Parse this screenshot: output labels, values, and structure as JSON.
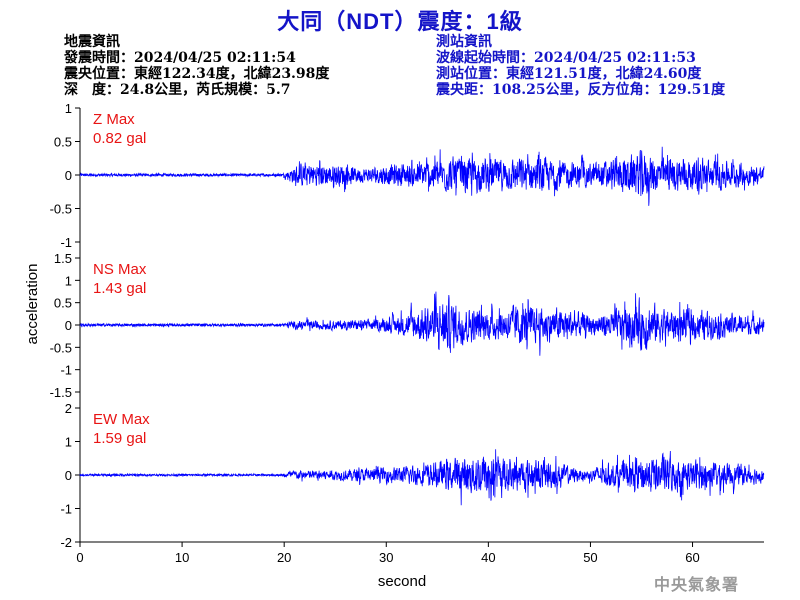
{
  "header": {
    "title": "大同（NDT）震度：1級",
    "quake_info": [
      "地震資訊",
      "發震時間：2024/04/25 02:11:54",
      "震央位置：東經122.34度，北緯23.98度",
      "深　度：24.8公里，芮氏規模：5.7"
    ],
    "station_info": [
      "測站資訊",
      "波線起始時間：2024/04/25 02:11:53",
      "測站位置：東經121.51度，北緯24.60度",
      "震央距：108.25公里，反方位角：129.51度"
    ]
  },
  "footer": {
    "agency": "中央氣象署"
  },
  "colors": {
    "trace": "#0000ff",
    "max_label": "#e81414",
    "title": "#1414c8",
    "axis": "#000000"
  },
  "chart_data": {
    "type": "line",
    "xlabel": "second",
    "ylabel": "acceleration",
    "xlim": [
      0,
      67
    ],
    "x_ticks": [
      0,
      10,
      20,
      30,
      40,
      50,
      60
    ],
    "grid": false,
    "panels": [
      {
        "name": "Z",
        "max_label": "Z Max",
        "max_value": "0.82 gal",
        "ylim": [
          -1,
          1
        ],
        "y_ticks": [
          -1,
          -0.5,
          0,
          0.5,
          1
        ],
        "y_tick_labels": [
          "-1",
          "-0.5",
          "0",
          "0.5",
          "1"
        ],
        "onset_s": 20.0,
        "peak": 0.82,
        "envelope": [
          [
            0,
            0.02
          ],
          [
            19.9,
            0.02
          ],
          [
            20.5,
            0.25
          ],
          [
            22,
            0.45
          ],
          [
            25,
            0.4
          ],
          [
            28,
            0.25
          ],
          [
            31,
            0.4
          ],
          [
            33,
            0.45
          ],
          [
            35,
            0.55
          ],
          [
            37,
            0.6
          ],
          [
            39,
            0.6
          ],
          [
            42,
            0.55
          ],
          [
            45,
            0.6
          ],
          [
            48,
            0.45
          ],
          [
            50,
            0.4
          ],
          [
            53,
            0.6
          ],
          [
            55,
            0.82
          ],
          [
            57,
            0.6
          ],
          [
            60,
            0.55
          ],
          [
            63,
            0.5
          ],
          [
            66,
            0.35
          ],
          [
            67,
            0.3
          ]
        ]
      },
      {
        "name": "NS",
        "max_label": "NS Max",
        "max_value": "1.43 gal",
        "ylim": [
          -1.5,
          1.5
        ],
        "y_ticks": [
          -1.5,
          -1,
          -0.5,
          0,
          0.5,
          1,
          1.5
        ],
        "y_tick_labels": [
          "-1.5",
          "-1",
          "-0.5",
          "0",
          "0.5",
          "1",
          "1.5"
        ],
        "onset_s": 20.0,
        "peak": 1.43,
        "envelope": [
          [
            0,
            0.03
          ],
          [
            19.9,
            0.03
          ],
          [
            20.5,
            0.2
          ],
          [
            25,
            0.25
          ],
          [
            29,
            0.3
          ],
          [
            31,
            0.45
          ],
          [
            33,
            0.8
          ],
          [
            35,
            1.2
          ],
          [
            36,
            1.43
          ],
          [
            38,
            0.9
          ],
          [
            40,
            0.8
          ],
          [
            42,
            0.8
          ],
          [
            43,
            1.1
          ],
          [
            45,
            0.9
          ],
          [
            48,
            0.8
          ],
          [
            50,
            0.5
          ],
          [
            52,
            0.7
          ],
          [
            54,
            1.0
          ],
          [
            55,
            1.3
          ],
          [
            57,
            0.9
          ],
          [
            60,
            0.8
          ],
          [
            63,
            0.6
          ],
          [
            66,
            0.5
          ],
          [
            67,
            0.4
          ]
        ]
      },
      {
        "name": "EW",
        "max_label": "EW Max",
        "max_value": "1.59 gal",
        "ylim": [
          -2,
          2
        ],
        "y_ticks": [
          -2,
          -1,
          0,
          1,
          2
        ],
        "y_tick_labels": [
          "-2",
          "-1",
          "0",
          "1",
          "2"
        ],
        "onset_s": 20.0,
        "peak": 1.59,
        "envelope": [
          [
            0,
            0.03
          ],
          [
            19.9,
            0.03
          ],
          [
            20.5,
            0.3
          ],
          [
            25,
            0.35
          ],
          [
            29,
            0.5
          ],
          [
            32,
            0.6
          ],
          [
            35,
            0.9
          ],
          [
            38,
            1.3
          ],
          [
            40,
            1.59
          ],
          [
            41,
            1.2
          ],
          [
            43,
            1.1
          ],
          [
            46,
            1.0
          ],
          [
            48,
            0.6
          ],
          [
            49.5,
            0.3
          ],
          [
            51,
            0.7
          ],
          [
            53,
            0.9
          ],
          [
            55,
            1.2
          ],
          [
            57,
            1.3
          ],
          [
            59,
            1.1
          ],
          [
            62,
            0.9
          ],
          [
            65,
            0.7
          ],
          [
            67,
            0.5
          ]
        ]
      }
    ]
  }
}
